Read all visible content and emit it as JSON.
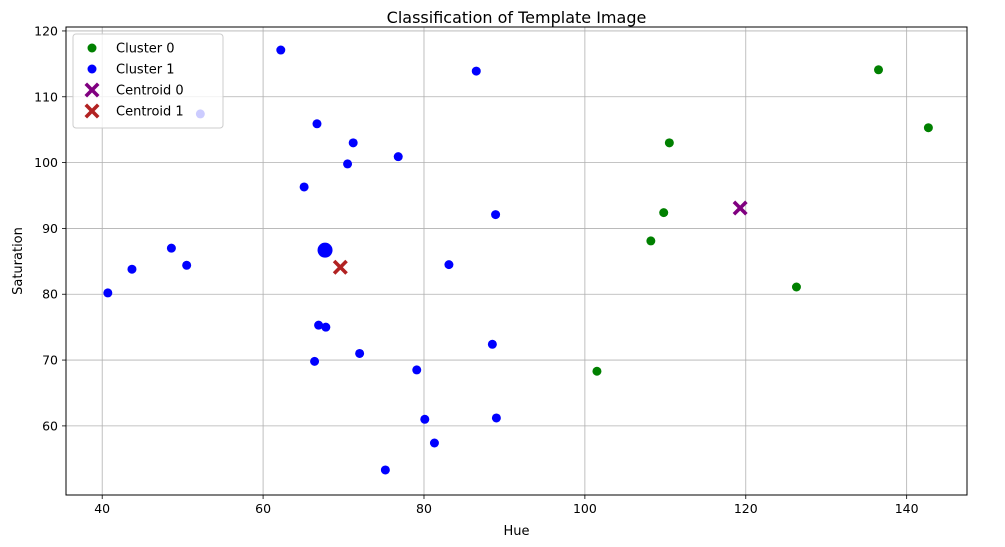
{
  "chart_data": {
    "type": "scatter",
    "title": "Classification of Template Image",
    "xlabel": "Hue",
    "ylabel": "Saturation",
    "xlim": [
      35.5,
      147.5
    ],
    "ylim": [
      49.5,
      120.6
    ],
    "xticks": [
      40,
      60,
      80,
      100,
      120,
      140
    ],
    "yticks": [
      60,
      70,
      80,
      90,
      100,
      110,
      120
    ],
    "grid": true,
    "legend_position": "top-left",
    "series": [
      {
        "name": "Cluster 0",
        "marker": "circle",
        "color": "#008000",
        "points": [
          [
            136.5,
            114.1
          ],
          [
            142.7,
            105.3
          ],
          [
            110.5,
            103.0
          ],
          [
            109.8,
            92.4
          ],
          [
            108.2,
            88.1
          ],
          [
            126.3,
            81.1
          ],
          [
            101.5,
            68.3
          ]
        ]
      },
      {
        "name": "Cluster 1",
        "marker": "circle",
        "color": "#0000ff",
        "points": [
          [
            62.2,
            117.1
          ],
          [
            86.5,
            113.9
          ],
          [
            52.2,
            107.4
          ],
          [
            66.7,
            105.9
          ],
          [
            71.2,
            103.0
          ],
          [
            76.8,
            100.9
          ],
          [
            70.5,
            99.8
          ],
          [
            65.1,
            96.3
          ],
          [
            88.9,
            92.1
          ],
          [
            48.6,
            87.0
          ],
          [
            43.7,
            83.8
          ],
          [
            50.5,
            84.4
          ],
          [
            83.1,
            84.5
          ],
          [
            40.7,
            80.2
          ],
          [
            66.9,
            75.3
          ],
          [
            67.8,
            75.0
          ],
          [
            72.0,
            71.0
          ],
          [
            66.4,
            69.8
          ],
          [
            88.5,
            72.4
          ],
          [
            79.1,
            68.5
          ],
          [
            80.1,
            61.0
          ],
          [
            89.0,
            61.2
          ],
          [
            81.3,
            57.4
          ],
          [
            75.2,
            53.3
          ]
        ]
      },
      {
        "name": "Centroid 0",
        "marker": "x",
        "color": "#800080",
        "points": [
          [
            119.3,
            93.1
          ]
        ]
      },
      {
        "name": "Centroid 1",
        "marker": "x",
        "color": "#b22222",
        "points": [
          [
            69.6,
            84.1
          ]
        ]
      }
    ],
    "template_point": {
      "marker": "circle-large",
      "color": "#0000ff",
      "point": [
        67.7,
        86.7
      ]
    }
  }
}
